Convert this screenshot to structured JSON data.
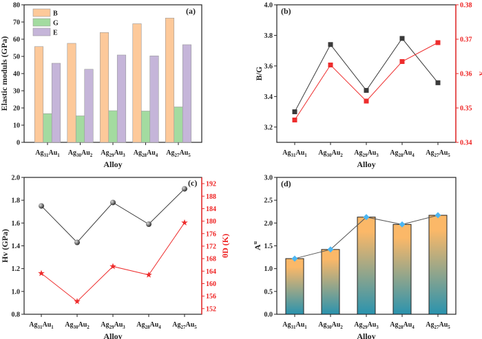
{
  "chart_data": [
    {
      "panel": "(a)",
      "type": "bar",
      "categories": [
        "Ag31Au1",
        "Ag30Au2",
        "Ag29Au3",
        "Ag28Au4",
        "Ag27Au5"
      ],
      "xlabel": "Alloy",
      "ylabel": "Elastic moduls (GPa)",
      "ylim": [
        0,
        80
      ],
      "yticks": [
        0,
        10,
        20,
        30,
        40,
        50,
        60,
        70,
        80
      ],
      "legend_position": "top-left",
      "series": [
        {
          "name": "B",
          "color": "#fdc99a",
          "values": [
            55.7,
            57.6,
            63.9,
            69.0,
            72.3
          ]
        },
        {
          "name": "G",
          "color": "#a3dba0",
          "values": [
            16.7,
            15.4,
            18.4,
            18.2,
            20.6
          ]
        },
        {
          "name": "E",
          "color": "#c5b5d9",
          "values": [
            46.0,
            42.5,
            50.8,
            50.3,
            56.8
          ]
        }
      ]
    },
    {
      "panel": "(b)",
      "type": "line",
      "categories": [
        "Ag31Au1",
        "Ag30Au2",
        "Ag29Au3",
        "Ag28Au4",
        "Ag27Au5"
      ],
      "xlabel": "Alloy",
      "ylabel": "B/G",
      "ylim": [
        3.1,
        4.0
      ],
      "yticks": [
        3.2,
        3.4,
        3.6,
        3.8,
        4.0
      ],
      "y2label": "v",
      "y2lim": [
        0.34,
        0.38
      ],
      "y2ticks": [
        0.34,
        0.35,
        0.36,
        0.37,
        0.38
      ],
      "series": [
        {
          "name": "B/G",
          "axis": "left",
          "color": "#3a3a3a",
          "marker": "square",
          "values": [
            3.3,
            3.74,
            3.44,
            3.78,
            3.49
          ]
        },
        {
          "name": "v",
          "axis": "right",
          "color": "#ee2d2d",
          "marker": "square",
          "values": [
            0.3465,
            0.3625,
            0.352,
            0.3635,
            0.369
          ]
        }
      ]
    },
    {
      "panel": "(c)",
      "type": "line",
      "categories": [
        "Ag31Au1",
        "Ag30Au2",
        "Ag29Au3",
        "Ag28Au4",
        "Ag27Au5"
      ],
      "xlabel": "Alloy",
      "ylabel": "Hv (GPa)",
      "ylim": [
        0.8,
        2.0
      ],
      "yticks": [
        0.8,
        1.0,
        1.2,
        1.4,
        1.6,
        1.8,
        2.0
      ],
      "y2label": "θD (K)",
      "y2lim": [
        150.2,
        194
      ],
      "y2ticks": [
        152,
        156,
        160,
        164,
        168,
        172,
        176,
        180,
        184,
        188,
        192
      ],
      "series": [
        {
          "name": "Hv",
          "axis": "left",
          "color": "#3a3a3a",
          "marker": "sphere",
          "values": [
            1.75,
            1.43,
            1.78,
            1.59,
            1.9
          ]
        },
        {
          "name": "θD",
          "axis": "right",
          "color": "#ee2d2d",
          "marker": "star",
          "values": [
            163.3,
            154.3,
            165.5,
            162.8,
            179.5
          ]
        }
      ]
    },
    {
      "panel": "(d)",
      "type": "bar",
      "categories": [
        "Ag31Au1",
        "Ag30Au2",
        "Ag29Au3",
        "Ag28Au4",
        "Ag27Au5"
      ],
      "xlabel": "Alloy",
      "ylabel": "Au",
      "ylim": [
        0,
        3.0
      ],
      "yticks": [
        0.0,
        0.5,
        1.0,
        1.5,
        2.0,
        2.5,
        3.0
      ],
      "series": [
        {
          "name": "Au",
          "color_top": "#fbb868",
          "color_bottom": "#2a93ae",
          "line_color": "#555555",
          "marker_color": "#4cb6f2",
          "values": [
            1.22,
            1.42,
            2.13,
            1.97,
            2.17
          ]
        }
      ]
    }
  ]
}
